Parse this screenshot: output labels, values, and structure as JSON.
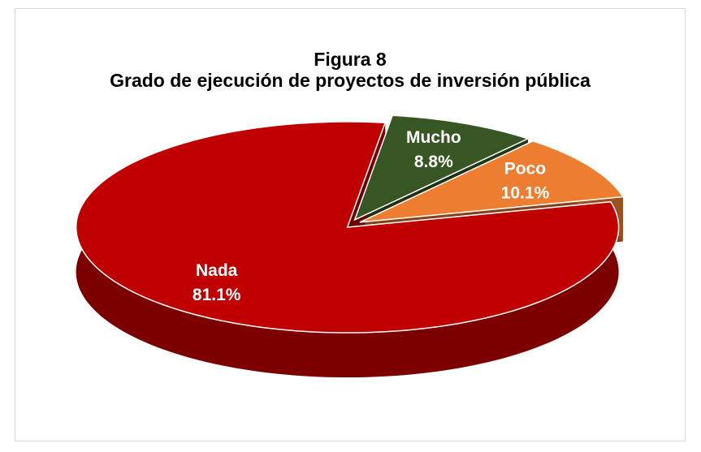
{
  "chart_data": {
    "type": "pie3d",
    "title": "Figura 8",
    "subtitle": "Grado de ejecución de proyectos de inversión pública",
    "categories": [
      "Mucho",
      "Poco",
      "Nada"
    ],
    "values": [
      8.8,
      10.1,
      81.1
    ],
    "value_labels": [
      "8.8%",
      "10.1%",
      "81.1%"
    ],
    "colors": [
      "#375623",
      "#ed7d31",
      "#c00000"
    ]
  }
}
